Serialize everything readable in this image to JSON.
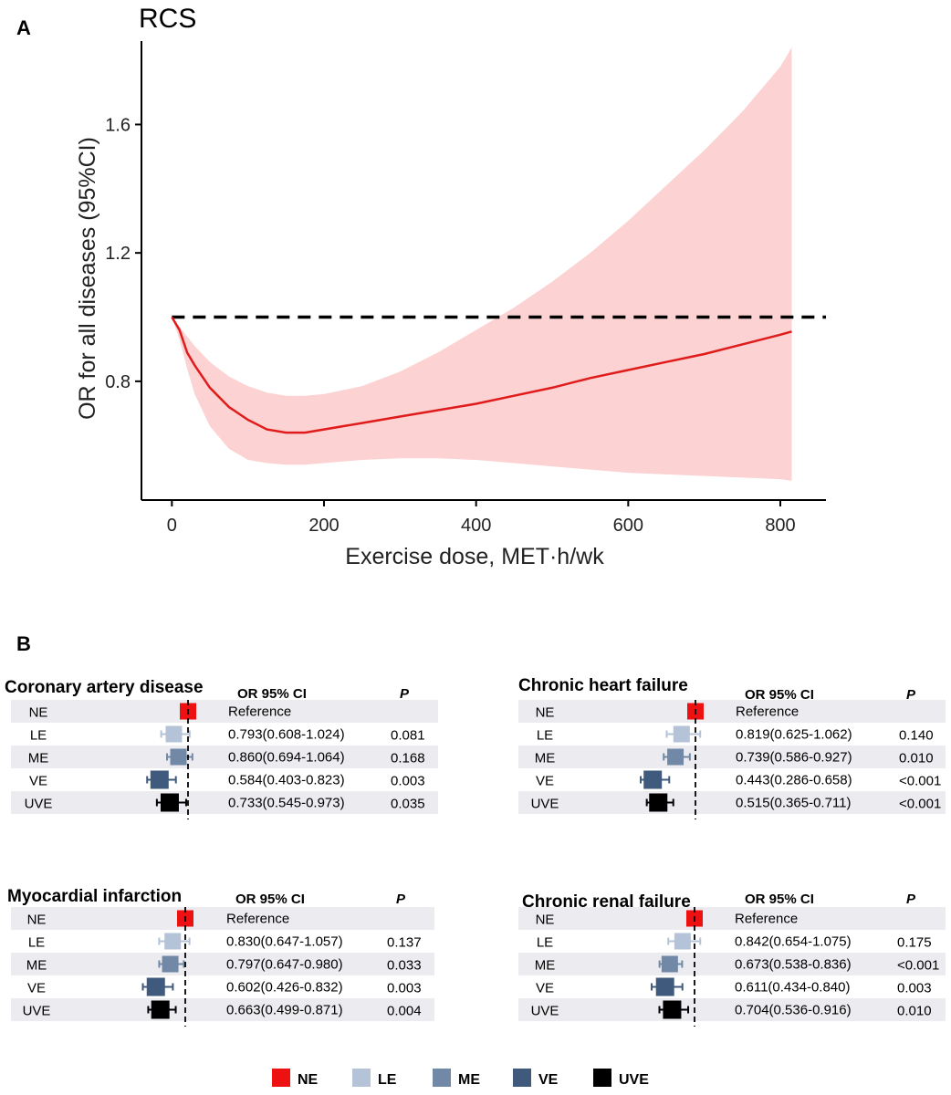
{
  "panel_a_label": "A",
  "panel_b_label": "B",
  "colors": {
    "NE": "#ee1111",
    "LE": "#b4c3d7",
    "ME": "#7189a6",
    "VE": "#3f5a7c",
    "UVE": "#000000",
    "curve": "#e01b1b",
    "band": "#fcd2d2",
    "row_bg": "#ececf0"
  },
  "chart_data": [
    {
      "type": "line",
      "title": "RCS",
      "xlabel": "Exercise dose, MET·h/wk",
      "ylabel": "OR for all diseases (95%CI)",
      "xlim": [
        -40,
        860
      ],
      "ylim": [
        0.43,
        1.86
      ],
      "xticks": [
        "0",
        "200",
        "400",
        "600",
        "800"
      ],
      "xtick_values": [
        0,
        200,
        400,
        600,
        800
      ],
      "yticks": [
        "0.8",
        "1.2",
        "1.6"
      ],
      "ytick_values": [
        0.8,
        1.2,
        1.6
      ],
      "reference_line": 1.0,
      "x": [
        0,
        10,
        20,
        30,
        50,
        75,
        100,
        125,
        150,
        175,
        200,
        250,
        300,
        350,
        400,
        450,
        500,
        550,
        600,
        650,
        700,
        750,
        800,
        815
      ],
      "y": [
        1.0,
        0.96,
        0.89,
        0.85,
        0.78,
        0.72,
        0.68,
        0.65,
        0.64,
        0.64,
        0.65,
        0.67,
        0.69,
        0.71,
        0.73,
        0.755,
        0.78,
        0.81,
        0.835,
        0.86,
        0.885,
        0.915,
        0.945,
        0.955
      ],
      "lower": [
        1.0,
        0.93,
        0.84,
        0.76,
        0.66,
        0.59,
        0.555,
        0.545,
        0.54,
        0.54,
        0.545,
        0.555,
        0.56,
        0.56,
        0.555,
        0.545,
        0.535,
        0.525,
        0.515,
        0.51,
        0.505,
        0.5,
        0.495,
        0.49
      ],
      "upper": [
        1.0,
        0.97,
        0.94,
        0.91,
        0.86,
        0.815,
        0.785,
        0.765,
        0.755,
        0.755,
        0.76,
        0.785,
        0.83,
        0.89,
        0.96,
        1.03,
        1.11,
        1.2,
        1.3,
        1.41,
        1.52,
        1.64,
        1.78,
        1.84
      ]
    },
    {
      "type": "forest",
      "title": "Coronary artery disease",
      "col_or": "OR 95% CI",
      "col_p": "P",
      "rows": [
        {
          "label": "NE",
          "or": 1.0,
          "lo": 1.0,
          "hi": 1.0,
          "text": "Reference",
          "p": ""
        },
        {
          "label": "LE",
          "or": 0.793,
          "lo": 0.608,
          "hi": 1.024,
          "text": "0.793(0.608-1.024)",
          "p": "0.081"
        },
        {
          "label": "ME",
          "or": 0.86,
          "lo": 0.694,
          "hi": 1.064,
          "text": "0.860(0.694-1.064)",
          "p": "0.168"
        },
        {
          "label": "VE",
          "or": 0.584,
          "lo": 0.403,
          "hi": 0.823,
          "text": "0.584(0.403-0.823)",
          "p": "0.003"
        },
        {
          "label": "UVE",
          "or": 0.733,
          "lo": 0.545,
          "hi": 0.973,
          "text": "0.733(0.545-0.973)",
          "p": "0.035"
        }
      ]
    },
    {
      "type": "forest",
      "title": "Chronic heart failure",
      "col_or": "OR 95% CI",
      "col_p": "P",
      "rows": [
        {
          "label": "NE",
          "or": 1.0,
          "lo": 1.0,
          "hi": 1.0,
          "text": "Reference",
          "p": ""
        },
        {
          "label": "LE",
          "or": 0.819,
          "lo": 0.625,
          "hi": 1.062,
          "text": "0.819(0.625-1.062)",
          "p": "0.140"
        },
        {
          "label": "ME",
          "or": 0.739,
          "lo": 0.586,
          "hi": 0.927,
          "text": "0.739(0.586-0.927)",
          "p": "0.010"
        },
        {
          "label": "VE",
          "or": 0.443,
          "lo": 0.286,
          "hi": 0.658,
          "text": "0.443(0.286-0.658)",
          "p": "<0.001"
        },
        {
          "label": "UVE",
          "or": 0.515,
          "lo": 0.365,
          "hi": 0.711,
          "text": "0.515(0.365-0.711)",
          "p": "<0.001"
        }
      ]
    },
    {
      "type": "forest",
      "title": "Myocardial infarction",
      "col_or": "OR 95% CI",
      "col_p": "P",
      "rows": [
        {
          "label": "NE",
          "or": 1.0,
          "lo": 1.0,
          "hi": 1.0,
          "text": "Reference",
          "p": ""
        },
        {
          "label": "LE",
          "or": 0.83,
          "lo": 0.647,
          "hi": 1.057,
          "text": "0.830(0.647-1.057)",
          "p": "0.137"
        },
        {
          "label": "ME",
          "or": 0.797,
          "lo": 0.647,
          "hi": 0.98,
          "text": "0.797(0.647-0.980)",
          "p": "0.033"
        },
        {
          "label": "VE",
          "or": 0.602,
          "lo": 0.426,
          "hi": 0.832,
          "text": "0.602(0.426-0.832)",
          "p": "0.003"
        },
        {
          "label": "UVE",
          "or": 0.663,
          "lo": 0.499,
          "hi": 0.871,
          "text": "0.663(0.499-0.871)",
          "p": "0.004"
        }
      ]
    },
    {
      "type": "forest",
      "title": "Chronic renal failure",
      "col_or": "OR 95% CI",
      "col_p": "P",
      "rows": [
        {
          "label": "NE",
          "or": 1.0,
          "lo": 1.0,
          "hi": 1.0,
          "text": "Reference",
          "p": ""
        },
        {
          "label": "LE",
          "or": 0.842,
          "lo": 0.654,
          "hi": 1.075,
          "text": "0.842(0.654-1.075)",
          "p": "0.175"
        },
        {
          "label": "ME",
          "or": 0.673,
          "lo": 0.538,
          "hi": 0.836,
          "text": "0.673(0.538-0.836)",
          "p": "<0.001"
        },
        {
          "label": "VE",
          "or": 0.611,
          "lo": 0.434,
          "hi": 0.84,
          "text": "0.611(0.434-0.840)",
          "p": "0.003"
        },
        {
          "label": "UVE",
          "or": 0.704,
          "lo": 0.536,
          "hi": 0.916,
          "text": "0.704(0.536-0.916)",
          "p": "0.010"
        }
      ]
    }
  ],
  "legend": [
    {
      "key": "NE",
      "label": "NE"
    },
    {
      "key": "LE",
      "label": "LE"
    },
    {
      "key": "ME",
      "label": "ME"
    },
    {
      "key": "VE",
      "label": "VE"
    },
    {
      "key": "UVE",
      "label": "UVE"
    }
  ]
}
